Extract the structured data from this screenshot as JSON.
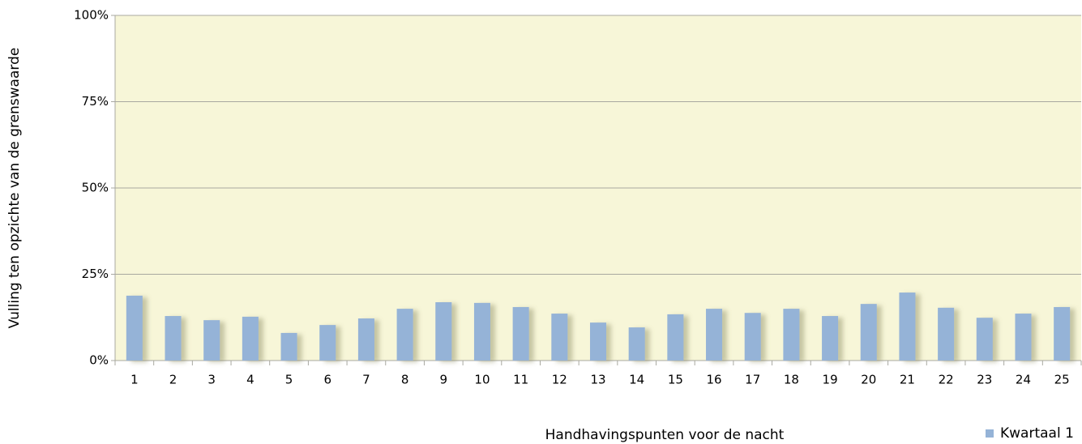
{
  "chart_data": {
    "type": "bar",
    "x_label": "Handhavingspunten voor de nacht",
    "y_label": "Vulling ten opzichte van de grenswaarde",
    "categories": [
      "1",
      "2",
      "3",
      "4",
      "5",
      "6",
      "7",
      "8",
      "9",
      "10",
      "11",
      "12",
      "13",
      "14",
      "15",
      "16",
      "17",
      "18",
      "19",
      "20",
      "21",
      "22",
      "23",
      "24",
      "25"
    ],
    "series": [
      {
        "name": "Kwartaal 1",
        "color": "#95b3d7",
        "values": [
          18.8,
          12.9,
          11.7,
          12.7,
          8.0,
          10.3,
          12.2,
          15.0,
          16.9,
          16.7,
          15.5,
          13.6,
          11.0,
          9.6,
          13.4,
          15.0,
          13.8,
          15.0,
          12.9,
          16.4,
          19.7,
          15.3,
          12.4,
          13.6,
          15.5
        ]
      }
    ],
    "ylim": [
      0,
      100
    ],
    "yticks": [
      {
        "value": 0,
        "label": "0%"
      },
      {
        "value": 25,
        "label": "25%"
      },
      {
        "value": 50,
        "label": "50%"
      },
      {
        "value": 75,
        "label": "75%"
      },
      {
        "value": 100,
        "label": "100%"
      }
    ],
    "grid": true,
    "legend": "bottom-right"
  }
}
